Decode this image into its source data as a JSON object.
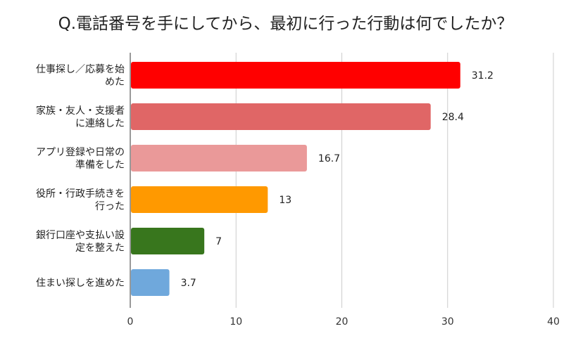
{
  "chart_data": {
    "type": "bar",
    "orientation": "horizontal",
    "title": "Q.電話番号を手にしてから、最初に行った行動は何でしたか？",
    "xlabel": "",
    "ylabel": "",
    "xlim": [
      0,
      40
    ],
    "xticks": [
      0,
      10,
      20,
      30,
      40
    ],
    "grid": true,
    "legend": "none",
    "categories": [
      [
        "仕事探し／応募を始",
        "めた"
      ],
      [
        "家族・友人・支援者",
        "に連絡した"
      ],
      [
        "アプリ登録や日常の",
        "準備をした"
      ],
      [
        "役所・行政手続きを",
        "行った"
      ],
      [
        "銀行口座や支払い設",
        "定を整えた"
      ],
      [
        "住まい探しを進めた"
      ]
    ],
    "values": [
      31.2,
      28.4,
      16.7,
      13,
      7,
      3.7
    ],
    "value_labels": [
      "31.2",
      "28.4",
      "16.7",
      "13",
      "7",
      "3.7"
    ],
    "colors": [
      "#ff0000",
      "#e06666",
      "#ea9999",
      "#ff9900",
      "#38761d",
      "#6fa8dc"
    ]
  }
}
